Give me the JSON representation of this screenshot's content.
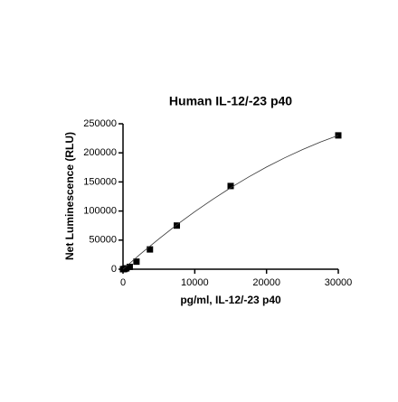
{
  "chart_data": {
    "type": "scatter",
    "title": "Human IL-12/-23 p40",
    "x_label": "pg/ml, IL-12/-23 p40",
    "y_label": "Net Luminescence (RLU)",
    "xlim": [
      0,
      30000
    ],
    "xticks": [
      0,
      10000,
      20000,
      30000
    ],
    "ylim": [
      0,
      250000
    ],
    "yticks": [
      0,
      50000,
      100000,
      150000,
      200000,
      250000
    ],
    "series": [
      {
        "kind": "points",
        "color": "#000000",
        "x": [
          0,
          117,
          234,
          469,
          938,
          1875,
          3750,
          7500,
          15000,
          30000
        ],
        "values": [
          0,
          200,
          500,
          1500,
          4000,
          13000,
          34000,
          75000,
          143000,
          230000
        ]
      },
      {
        "kind": "curve",
        "color": "#333333",
        "x": [
          0,
          2500,
          5000,
          7500,
          10000,
          12500,
          15000,
          17500,
          20000,
          22500,
          25000,
          27500,
          30000
        ],
        "values": [
          0,
          26800,
          52200,
          76300,
          98900,
          120100,
          140000,
          158500,
          175600,
          191300,
          205600,
          218500,
          230000
        ]
      }
    ]
  }
}
